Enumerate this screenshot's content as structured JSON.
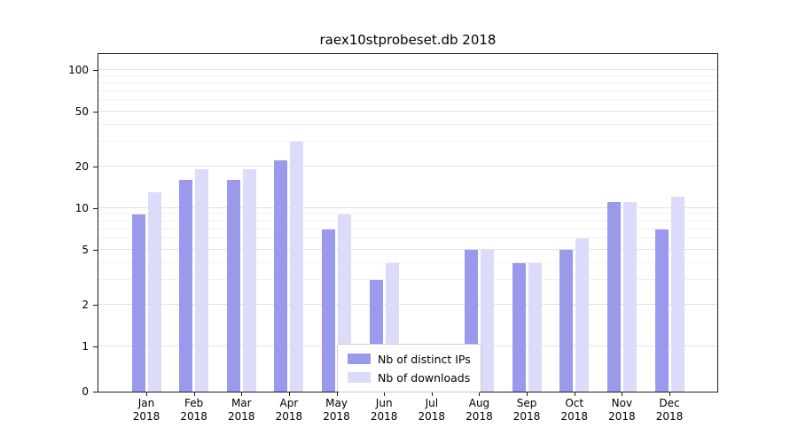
{
  "chart_data": {
    "type": "bar",
    "title": "raex10stprobeset.db 2018",
    "yscale": "symlog",
    "ylim": [
      0,
      130
    ],
    "yticks": [
      0,
      1,
      2,
      5,
      10,
      20,
      50,
      100
    ],
    "minor_gridlines": [
      3,
      4,
      6,
      7,
      8,
      9,
      30,
      40,
      60,
      70,
      80,
      90
    ],
    "grid": true,
    "legend_position": "lower center",
    "year": "2018",
    "months": [
      "Jan",
      "Feb",
      "Mar",
      "Apr",
      "May",
      "Jun",
      "Jul",
      "Aug",
      "Sep",
      "Oct",
      "Nov",
      "Dec"
    ],
    "categories": [
      "Jan 2018",
      "Feb 2018",
      "Mar 2018",
      "Apr 2018",
      "May 2018",
      "Jun 2018",
      "Jul 2018",
      "Aug 2018",
      "Sep 2018",
      "Oct 2018",
      "Nov 2018",
      "Dec 2018"
    ],
    "series": [
      {
        "name": "Nb of distinct IPs",
        "color": "#9a99ec",
        "values": [
          9,
          16,
          16,
          22,
          7,
          3,
          0,
          5,
          4,
          5,
          11,
          7
        ]
      },
      {
        "name": "Nb of downloads",
        "color": "#dcdbf9",
        "values": [
          13,
          19,
          19,
          30,
          9,
          4,
          0,
          5,
          4,
          6,
          11,
          12
        ]
      }
    ]
  }
}
